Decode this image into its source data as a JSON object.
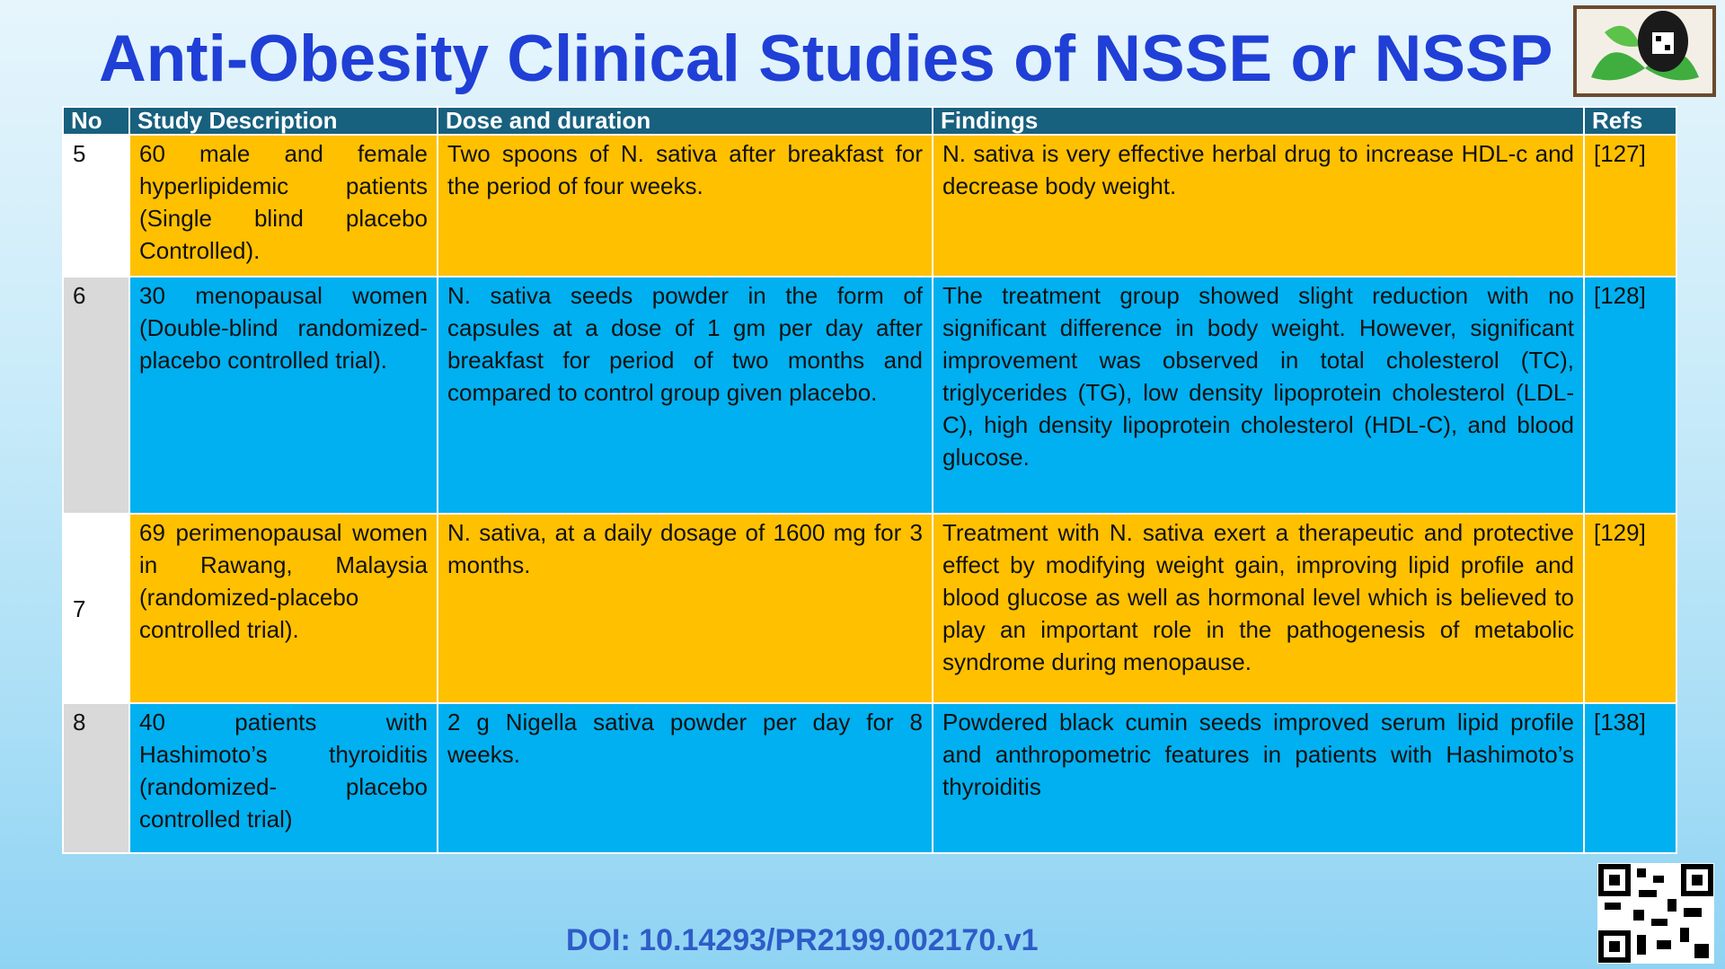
{
  "title": "Anti-Obesity Clinical Studies of NSSE or NSSP",
  "table": {
    "headers": [
      "No",
      "Study Description",
      "Dose and duration",
      "Findings",
      "Refs"
    ],
    "rows": [
      [
        "5",
        "60 male and female hyperlipidemic patients (Single blind placebo Controlled).",
        "Two spoons of N. sativa after breakfast for the period of four weeks.",
        "N. sativa is very effective herbal drug to increase HDL-c and decrease body weight.",
        "[127]"
      ],
      [
        "6",
        "30 menopausal women (Double-blind randomized- placebo controlled trial).",
        "N. sativa seeds powder in the form of capsules at a dose of 1 gm per day after breakfast for period of two months and compared to control group given placebo.",
        "The treatment group showed slight reduction with no significant difference in body weight. However, significant improvement was observed in total cholesterol (TC), triglycerides (TG), low density lipoprotein cholesterol (LDL-C), high density lipoprotein cholesterol (HDL-C), and blood glucose.",
        "[128]"
      ],
      [
        "7",
        "69 perimenopausal women in Rawang, Malaysia (randomized-placebo controlled trial).",
        "N. sativa, at a daily dosage of 1600 mg for 3 months.",
        "Treatment with N. sativa exert a therapeutic and protective effect by modifying weight gain, improving lipid profile and blood glucose as well as hormonal level which is believed to play an important role in the pathogenesis of metabolic syndrome during menopause.",
        "[129]"
      ],
      [
        "8",
        "40 patients with Hashimoto’s thyroiditis (randomized- placebo controlled trial)",
        "2 g Nigella sativa powder per day for 8 weeks.",
        "Powdered black cumin seeds improved serum lipid profile and anthropometric features in patients with Hashimoto’s thyroiditis",
        "[138]"
      ]
    ]
  },
  "doi": "DOI: 10.14293/PR2199.002170.v1"
}
